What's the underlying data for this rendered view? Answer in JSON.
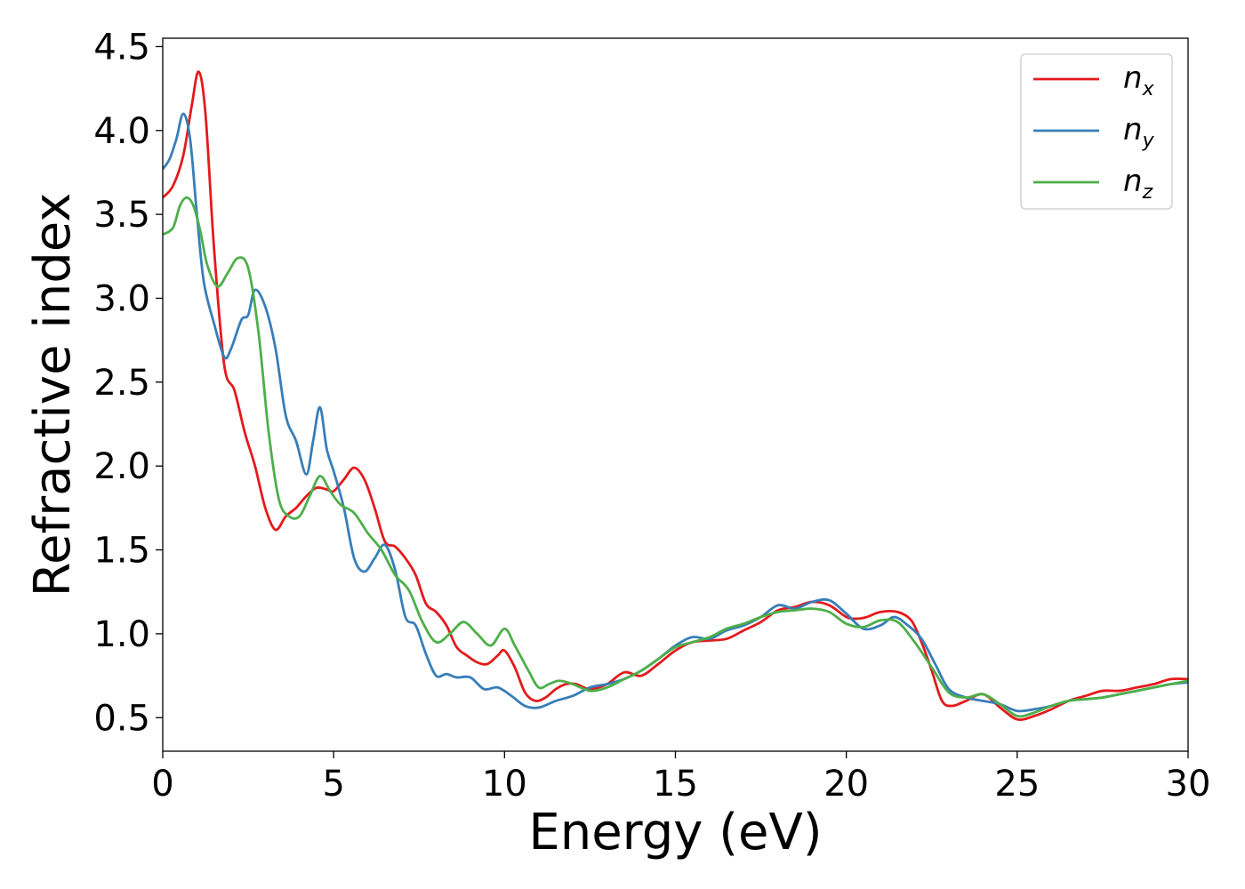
{
  "chart_data": {
    "type": "line",
    "xlabel": "Energy (eV)",
    "ylabel": "Refractive index",
    "xlim": [
      0,
      30
    ],
    "ylim": [
      0.3,
      4.55
    ],
    "xticks": [
      0,
      5,
      10,
      15,
      20,
      25,
      30
    ],
    "xtick_labels": [
      "0",
      "5",
      "10",
      "15",
      "20",
      "25",
      "30"
    ],
    "yticks": [
      0.5,
      1.0,
      1.5,
      2.0,
      2.5,
      3.0,
      3.5,
      4.0,
      4.5
    ],
    "ytick_labels": [
      "0.5",
      "1.0",
      "1.5",
      "2.0",
      "2.5",
      "3.0",
      "3.5",
      "4.0",
      "4.5"
    ],
    "grid": false,
    "legend_position": "top-right",
    "series": [
      {
        "name": "n",
        "subscript": "x",
        "color": "#e41a1c",
        "x": [
          0,
          0.3,
          0.6,
          0.85,
          1.05,
          1.25,
          1.5,
          1.8,
          2.1,
          2.4,
          2.7,
          3.0,
          3.3,
          3.6,
          3.9,
          4.2,
          4.5,
          4.8,
          5.0,
          5.3,
          5.6,
          5.9,
          6.2,
          6.5,
          6.8,
          7.1,
          7.4,
          7.7,
          8.0,
          8.3,
          8.6,
          8.9,
          9.2,
          9.5,
          9.8,
          10.0,
          10.3,
          10.6,
          10.9,
          11.2,
          11.5,
          11.8,
          12.1,
          12.5,
          13.0,
          13.5,
          14.0,
          14.5,
          15.0,
          15.5,
          16.0,
          16.5,
          17.0,
          17.5,
          18.0,
          18.5,
          19.0,
          19.5,
          20.0,
          20.3,
          20.6,
          21.0,
          21.5,
          21.9,
          22.2,
          22.5,
          22.8,
          23.1,
          23.5,
          24.0,
          24.5,
          25.0,
          25.5,
          26.0,
          26.5,
          27.0,
          27.5,
          28.0,
          28.5,
          29.0,
          29.5,
          30.0
        ],
        "values": [
          3.6,
          3.67,
          3.85,
          4.15,
          4.35,
          4.1,
          3.3,
          2.6,
          2.45,
          2.2,
          2.0,
          1.75,
          1.62,
          1.7,
          1.75,
          1.82,
          1.87,
          1.86,
          1.85,
          1.92,
          1.99,
          1.92,
          1.75,
          1.55,
          1.52,
          1.45,
          1.35,
          1.18,
          1.13,
          1.05,
          0.92,
          0.87,
          0.83,
          0.82,
          0.87,
          0.9,
          0.8,
          0.65,
          0.6,
          0.62,
          0.67,
          0.7,
          0.7,
          0.67,
          0.7,
          0.77,
          0.75,
          0.82,
          0.9,
          0.95,
          0.96,
          0.97,
          1.02,
          1.07,
          1.14,
          1.16,
          1.19,
          1.17,
          1.1,
          1.09,
          1.1,
          1.13,
          1.13,
          1.08,
          0.95,
          0.78,
          0.6,
          0.57,
          0.6,
          0.64,
          0.56,
          0.49,
          0.51,
          0.55,
          0.6,
          0.63,
          0.66,
          0.66,
          0.68,
          0.7,
          0.73,
          0.73
        ]
      },
      {
        "name": "n",
        "subscript": "y",
        "color": "#377eb8",
        "x": [
          0,
          0.2,
          0.4,
          0.6,
          0.8,
          1.0,
          1.2,
          1.5,
          1.8,
          2.0,
          2.3,
          2.5,
          2.7,
          3.0,
          3.3,
          3.6,
          3.9,
          4.2,
          4.4,
          4.6,
          4.8,
          5.0,
          5.3,
          5.6,
          5.9,
          6.2,
          6.5,
          6.8,
          7.1,
          7.4,
          7.7,
          8.0,
          8.3,
          8.6,
          9.0,
          9.4,
          9.8,
          10.2,
          10.6,
          11.0,
          11.5,
          12.0,
          12.5,
          13.0,
          13.5,
          14.0,
          14.5,
          15.0,
          15.5,
          16.0,
          16.5,
          17.0,
          17.5,
          18.0,
          18.5,
          19.0,
          19.5,
          20.0,
          20.5,
          21.0,
          21.4,
          21.8,
          22.2,
          22.6,
          23.0,
          23.5,
          24.0,
          24.5,
          25.0,
          25.5,
          26.0,
          26.5,
          27.0,
          27.5,
          28.0,
          28.5,
          29.0,
          29.5,
          30.0
        ],
        "values": [
          3.77,
          3.83,
          3.95,
          4.1,
          3.95,
          3.5,
          3.1,
          2.85,
          2.65,
          2.7,
          2.87,
          2.9,
          3.05,
          2.95,
          2.7,
          2.3,
          2.15,
          1.95,
          2.15,
          2.35,
          2.1,
          1.97,
          1.75,
          1.45,
          1.37,
          1.45,
          1.53,
          1.38,
          1.1,
          1.05,
          0.88,
          0.75,
          0.76,
          0.74,
          0.74,
          0.67,
          0.68,
          0.63,
          0.57,
          0.56,
          0.6,
          0.63,
          0.68,
          0.7,
          0.73,
          0.78,
          0.85,
          0.93,
          0.98,
          0.97,
          1.02,
          1.05,
          1.1,
          1.17,
          1.15,
          1.19,
          1.2,
          1.12,
          1.03,
          1.05,
          1.1,
          1.05,
          0.97,
          0.82,
          0.67,
          0.62,
          0.6,
          0.58,
          0.54,
          0.55,
          0.57,
          0.6,
          0.61,
          0.62,
          0.64,
          0.66,
          0.68,
          0.7,
          0.71
        ]
      },
      {
        "name": "n",
        "subscript": "z",
        "color": "#4daf4a",
        "x": [
          0,
          0.3,
          0.5,
          0.7,
          0.9,
          1.1,
          1.3,
          1.6,
          1.9,
          2.2,
          2.5,
          2.8,
          3.1,
          3.4,
          3.7,
          4.0,
          4.3,
          4.6,
          4.9,
          5.2,
          5.6,
          6.0,
          6.4,
          6.8,
          7.2,
          7.6,
          8.0,
          8.4,
          8.8,
          9.2,
          9.6,
          10.0,
          10.3,
          10.7,
          11.0,
          11.3,
          11.6,
          12.0,
          12.5,
          13.0,
          13.5,
          14.0,
          14.5,
          15.0,
          15.5,
          16.0,
          16.5,
          17.0,
          17.5,
          18.0,
          18.5,
          19.0,
          19.5,
          20.0,
          20.5,
          21.0,
          21.5,
          22.0,
          22.5,
          23.0,
          23.5,
          24.0,
          24.5,
          25.0,
          25.5,
          26.0,
          26.5,
          27.0,
          27.5,
          28.0,
          28.5,
          29.0,
          29.5,
          30.0
        ],
        "values": [
          3.38,
          3.42,
          3.55,
          3.6,
          3.55,
          3.4,
          3.2,
          3.07,
          3.15,
          3.24,
          3.18,
          2.8,
          2.2,
          1.8,
          1.7,
          1.7,
          1.82,
          1.94,
          1.85,
          1.77,
          1.72,
          1.6,
          1.5,
          1.35,
          1.26,
          1.07,
          0.95,
          1.0,
          1.07,
          1.0,
          0.93,
          1.03,
          0.93,
          0.78,
          0.68,
          0.7,
          0.72,
          0.7,
          0.66,
          0.68,
          0.73,
          0.78,
          0.85,
          0.92,
          0.95,
          0.98,
          1.03,
          1.06,
          1.1,
          1.13,
          1.14,
          1.15,
          1.13,
          1.06,
          1.04,
          1.08,
          1.07,
          0.95,
          0.8,
          0.65,
          0.62,
          0.64,
          0.58,
          0.51,
          0.53,
          0.57,
          0.6,
          0.61,
          0.62,
          0.64,
          0.66,
          0.68,
          0.7,
          0.72
        ]
      }
    ]
  }
}
